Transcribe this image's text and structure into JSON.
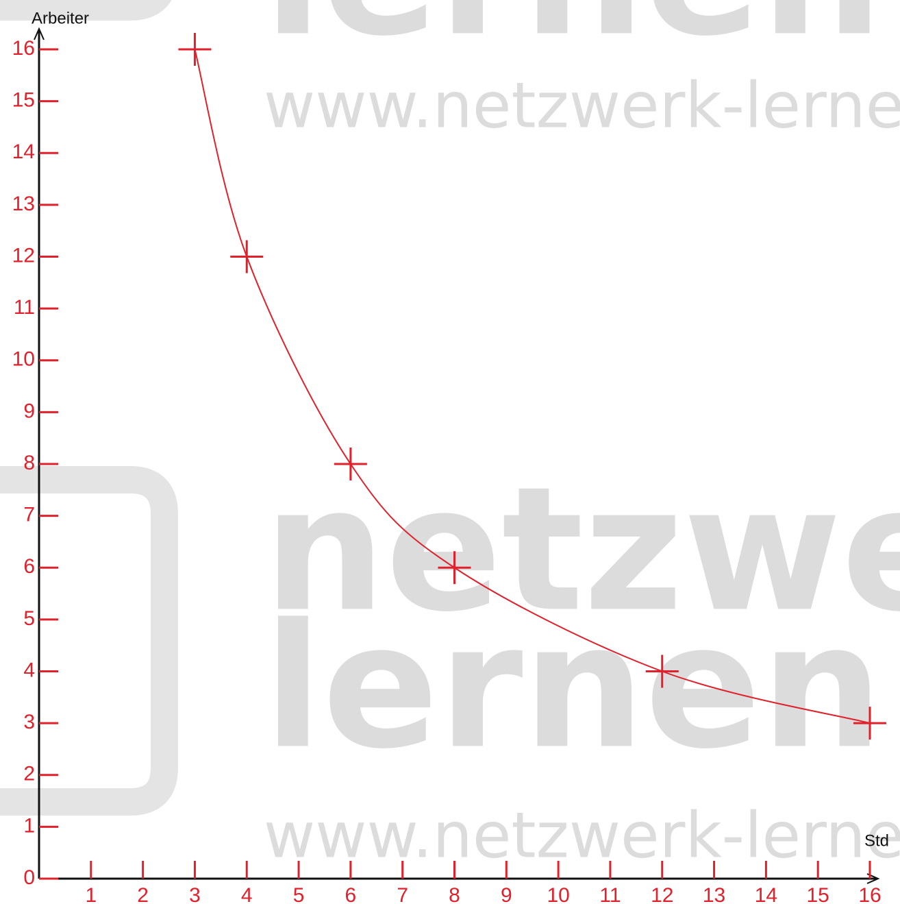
{
  "chart_data": {
    "type": "line",
    "xlabel": "Std",
    "ylabel": "Arbeiter",
    "x": [
      3,
      4,
      6,
      8,
      12,
      16
    ],
    "series": [
      {
        "color": "#e0202a",
        "values": [
          16,
          12,
          8,
          6,
          4,
          3
        ]
      }
    ],
    "xlim": [
      0,
      16
    ],
    "ylim": [
      0,
      16
    ],
    "xticks": [
      1,
      2,
      3,
      4,
      5,
      6,
      7,
      8,
      9,
      10,
      11,
      12,
      13,
      14,
      15,
      16
    ],
    "yticks": [
      0,
      1,
      2,
      3,
      4,
      5,
      6,
      7,
      8,
      9,
      10,
      11,
      12,
      13,
      14,
      15,
      16
    ],
    "tick_color": "#e0202a"
  },
  "watermark": [
    "lernen",
    "www.netzwerk-lernen.de",
    "netzwerk",
    "lernen",
    "www.netzwerk-lernen.de"
  ]
}
